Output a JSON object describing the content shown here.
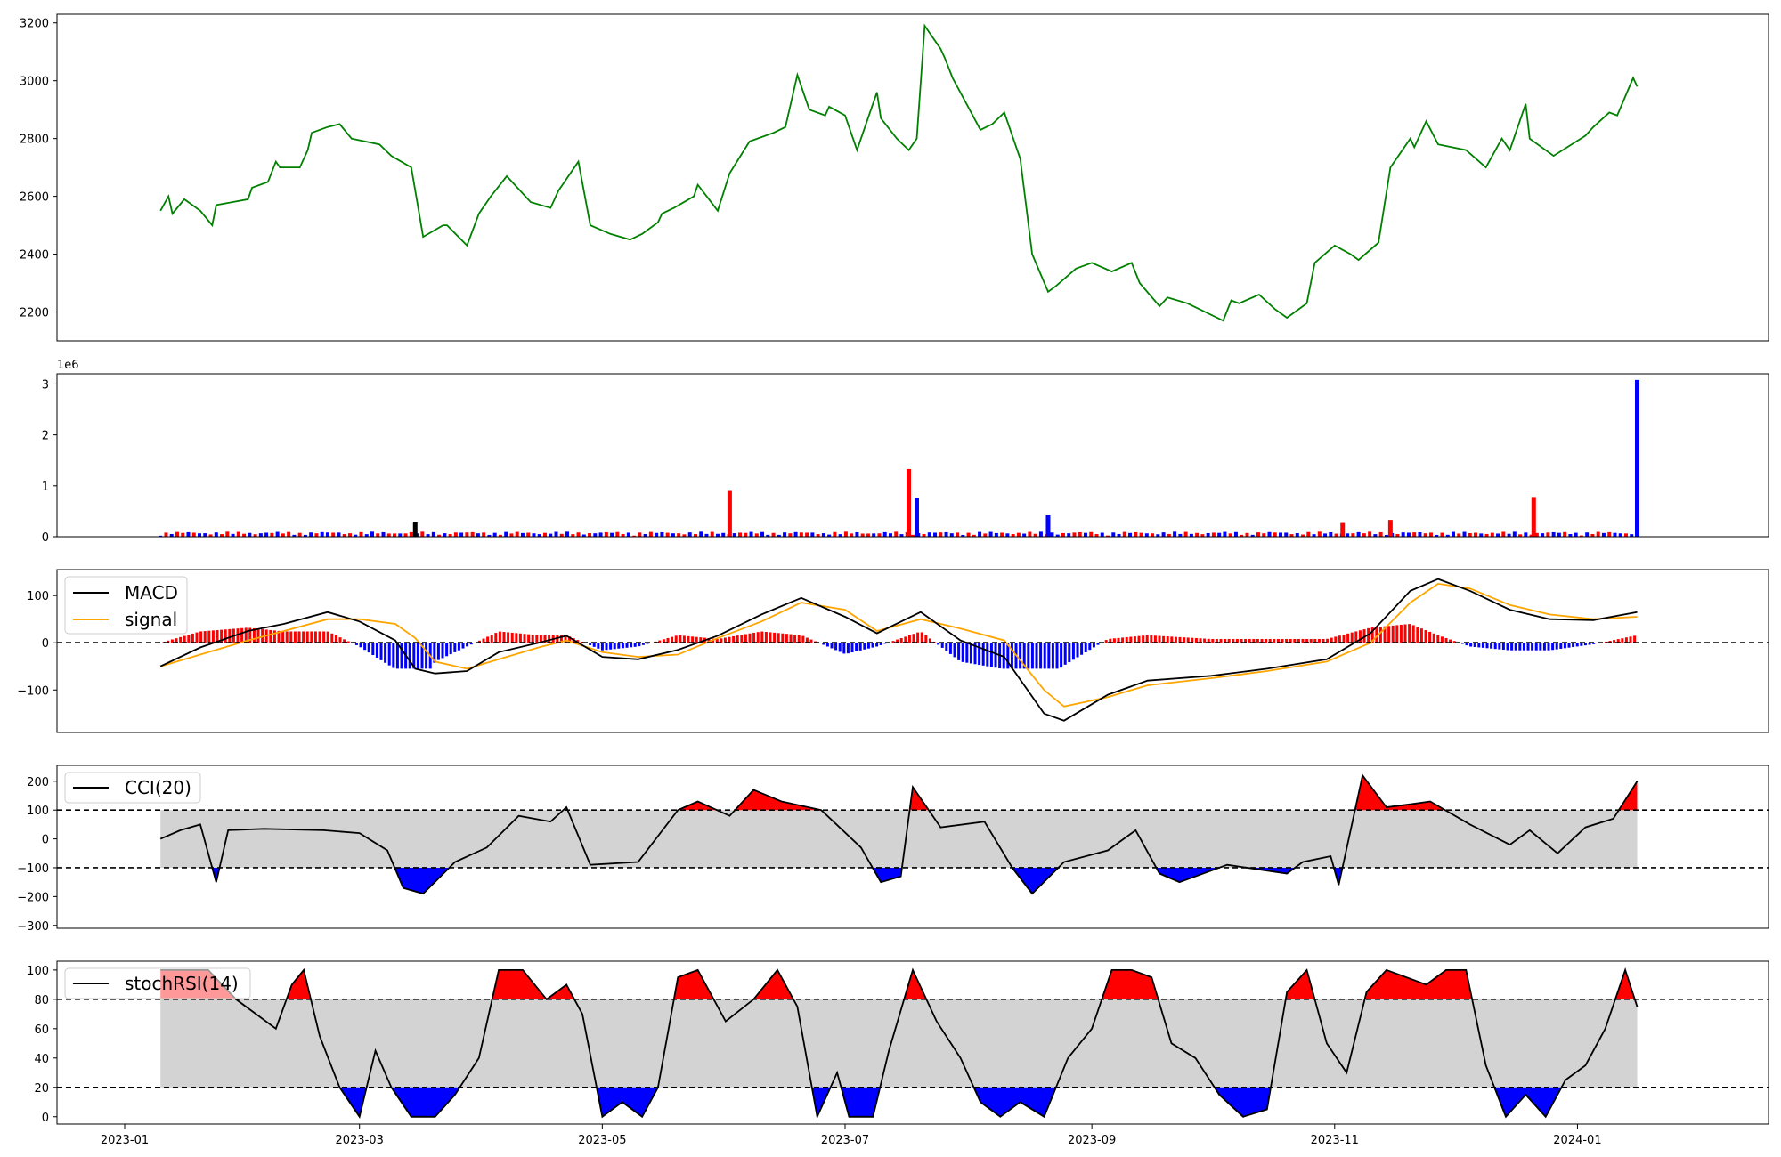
{
  "chart_data": [
    {
      "type": "line",
      "panel": "price",
      "ylim": [
        2100,
        3230
      ],
      "yticks": [
        "2200",
        "2400",
        "2600",
        "2800",
        "3000",
        "3200"
      ],
      "color": "#008000",
      "x": [
        "2023-01-10",
        "2023-01-12",
        "2023-01-13",
        "2023-01-16",
        "2023-01-20",
        "2023-01-23",
        "2023-01-24",
        "2023-02-01",
        "2023-02-02",
        "2023-02-06",
        "2023-02-08",
        "2023-02-09",
        "2023-02-14",
        "2023-02-16",
        "2023-02-17",
        "2023-02-21",
        "2023-02-24",
        "2023-02-27",
        "2023-03-06",
        "2023-03-09",
        "2023-03-14",
        "2023-03-15",
        "2023-03-17",
        "2023-03-22",
        "2023-03-23",
        "2023-03-28",
        "2023-03-31",
        "2023-04-03",
        "2023-04-07",
        "2023-04-13",
        "2023-04-18",
        "2023-04-20",
        "2023-04-21",
        "2023-04-25",
        "2023-04-28",
        "2023-05-03",
        "2023-05-08",
        "2023-05-11",
        "2023-05-15",
        "2023-05-16",
        "2023-05-19",
        "2023-05-24",
        "2023-05-25",
        "2023-05-30",
        "2023-06-02",
        "2023-06-07",
        "2023-06-13",
        "2023-06-16",
        "2023-06-19",
        "2023-06-22",
        "2023-06-26",
        "2023-06-27",
        "2023-07-01",
        "2023-07-04",
        "2023-07-07",
        "2023-07-09",
        "2023-07-10",
        "2023-07-14",
        "2023-07-17",
        "2023-07-19",
        "2023-07-21",
        "2023-07-25",
        "2023-07-26",
        "2023-07-28",
        "2023-08-04",
        "2023-08-07",
        "2023-08-10",
        "2023-08-14",
        "2023-08-17",
        "2023-08-21",
        "2023-08-23",
        "2023-08-28",
        "2023-09-01",
        "2023-09-06",
        "2023-09-11",
        "2023-09-13",
        "2023-09-18",
        "2023-09-20",
        "2023-09-25",
        "2023-10-04",
        "2023-10-06",
        "2023-10-08",
        "2023-10-13",
        "2023-10-17",
        "2023-10-20",
        "2023-10-25",
        "2023-10-27",
        "2023-11-01",
        "2023-11-05",
        "2023-11-07",
        "2023-11-12",
        "2023-11-15",
        "2023-11-20",
        "2023-11-21",
        "2023-11-24",
        "2023-11-27",
        "2023-12-04",
        "2023-12-09",
        "2023-12-13",
        "2023-12-15",
        "2023-12-19",
        "2023-12-20",
        "2023-12-26",
        "2024-01-03",
        "2024-01-05",
        "2024-01-09",
        "2024-01-11",
        "2024-01-15",
        "2024-01-16"
      ],
      "y": [
        2550,
        2600,
        2540,
        2590,
        2550,
        2500,
        2570,
        2590,
        2630,
        2650,
        2720,
        2700,
        2700,
        2760,
        2820,
        2840,
        2850,
        2800,
        2780,
        2740,
        2700,
        2620,
        2460,
        2500,
        2500,
        2430,
        2540,
        2600,
        2670,
        2580,
        2560,
        2620,
        2640,
        2720,
        2500,
        2470,
        2450,
        2470,
        2510,
        2540,
        2560,
        2600,
        2640,
        2550,
        2680,
        2790,
        2820,
        2840,
        3020,
        2900,
        2880,
        2910,
        2880,
        2760,
        2880,
        2960,
        2870,
        2800,
        2760,
        2800,
        3190,
        3110,
        3080,
        3010,
        2830,
        2850,
        2890,
        2730,
        2400,
        2270,
        2290,
        2350,
        2370,
        2340,
        2370,
        2300,
        2220,
        2250,
        2230,
        2170,
        2240,
        2230,
        2260,
        2210,
        2180,
        2230,
        2370,
        2430,
        2400,
        2380,
        2440,
        2700,
        2800,
        2770,
        2860,
        2780,
        2760,
        2700,
        2800,
        2760,
        2920,
        2800,
        2740,
        2810,
        2840,
        2890,
        2880,
        3010,
        2980
      ]
    },
    {
      "type": "bar",
      "panel": "volume",
      "offset_label": "1e6",
      "ylim": [
        0,
        3.2
      ],
      "yticks": [
        "0",
        "1",
        "2",
        "3"
      ],
      "spikes": [
        {
          "x": "2023-03-15",
          "value": 0.28,
          "color": "#000000"
        },
        {
          "x": "2023-06-02",
          "value": 0.9,
          "color": "#ff0000"
        },
        {
          "x": "2023-07-17",
          "value": 1.33,
          "color": "#ff0000"
        },
        {
          "x": "2023-07-19",
          "value": 0.76,
          "color": "#0000ff"
        },
        {
          "x": "2023-08-21",
          "value": 0.42,
          "color": "#0000ff"
        },
        {
          "x": "2023-11-03",
          "value": 0.27,
          "color": "#ff0000"
        },
        {
          "x": "2023-11-15",
          "value": 0.33,
          "color": "#ff0000"
        },
        {
          "x": "2023-12-21",
          "value": 0.78,
          "color": "#ff0000"
        },
        {
          "x": "2024-01-16",
          "value": 3.08,
          "color": "#0000ff"
        }
      ]
    },
    {
      "type": "line",
      "panel": "macd",
      "ylim": [
        -190,
        155
      ],
      "yticks": [
        "100",
        "0",
        "−100"
      ],
      "legend": [
        "MACD",
        "signal"
      ],
      "colors": {
        "macd": "#000000",
        "signal": "#ffa500",
        "pos": "#ff0000",
        "neg": "#0000ff"
      },
      "x": [
        "2023-01-10",
        "2023-01-20",
        "2023-02-01",
        "2023-02-10",
        "2023-02-21",
        "2023-03-01",
        "2023-03-10",
        "2023-03-15",
        "2023-03-20",
        "2023-03-28",
        "2023-04-05",
        "2023-04-15",
        "2023-04-22",
        "2023-05-01",
        "2023-05-10",
        "2023-05-20",
        "2023-05-30",
        "2023-06-10",
        "2023-06-20",
        "2023-07-01",
        "2023-07-09",
        "2023-07-20",
        "2023-07-30",
        "2023-08-10",
        "2023-08-20",
        "2023-08-25",
        "2023-09-05",
        "2023-09-15",
        "2023-10-01",
        "2023-10-15",
        "2023-10-30",
        "2023-11-10",
        "2023-11-20",
        "2023-11-27",
        "2023-12-05",
        "2023-12-15",
        "2023-12-25",
        "2024-01-05",
        "2024-01-16"
      ],
      "macd": [
        -50,
        -10,
        25,
        40,
        65,
        45,
        5,
        -55,
        -65,
        -60,
        -20,
        0,
        15,
        -30,
        -35,
        -15,
        15,
        60,
        95,
        55,
        20,
        65,
        5,
        -30,
        -150,
        -165,
        -110,
        -80,
        -70,
        -55,
        -35,
        20,
        110,
        135,
        110,
        70,
        50,
        48,
        65
      ],
      "signal": [
        -50,
        -25,
        5,
        25,
        50,
        50,
        40,
        10,
        -40,
        -55,
        -35,
        -10,
        5,
        -20,
        -30,
        -25,
        10,
        45,
        85,
        70,
        25,
        50,
        30,
        5,
        -100,
        -135,
        -115,
        -90,
        -75,
        -60,
        -40,
        0,
        85,
        125,
        115,
        80,
        60,
        50,
        55
      ]
    },
    {
      "type": "line",
      "panel": "cci",
      "legend": [
        "CCI(20)"
      ],
      "ylim": [
        -310,
        255
      ],
      "yticks": [
        "200",
        "100",
        "0",
        "−100",
        "−200",
        "−300"
      ],
      "thresholds": [
        100,
        -100
      ],
      "x": [
        "2023-01-10",
        "2023-01-15",
        "2023-01-20",
        "2023-01-24",
        "2023-01-27",
        "2023-02-05",
        "2023-02-20",
        "2023-03-01",
        "2023-03-08",
        "2023-03-12",
        "2023-03-17",
        "2023-03-25",
        "2023-04-02",
        "2023-04-10",
        "2023-04-18",
        "2023-04-22",
        "2023-04-28",
        "2023-05-10",
        "2023-05-20",
        "2023-05-25",
        "2023-06-02",
        "2023-06-08",
        "2023-06-15",
        "2023-06-25",
        "2023-07-05",
        "2023-07-10",
        "2023-07-15",
        "2023-07-18",
        "2023-07-25",
        "2023-08-05",
        "2023-08-12",
        "2023-08-17",
        "2023-08-25",
        "2023-09-05",
        "2023-09-12",
        "2023-09-18",
        "2023-09-23",
        "2023-10-05",
        "2023-10-20",
        "2023-10-24",
        "2023-10-31",
        "2023-11-02",
        "2023-11-08",
        "2023-11-14",
        "2023-11-20",
        "2023-11-25",
        "2023-12-05",
        "2023-12-15",
        "2023-12-20",
        "2023-12-27",
        "2024-01-03",
        "2024-01-10",
        "2024-01-16"
      ],
      "y": [
        0,
        30,
        50,
        -150,
        30,
        35,
        30,
        20,
        -40,
        -170,
        -190,
        -80,
        -30,
        80,
        60,
        110,
        -90,
        -80,
        100,
        130,
        80,
        170,
        130,
        100,
        -30,
        -150,
        -130,
        180,
        40,
        60,
        -100,
        -190,
        -80,
        -40,
        30,
        -120,
        -150,
        -90,
        -120,
        -80,
        -60,
        -160,
        220,
        110,
        120,
        130,
        50,
        -20,
        30,
        -50,
        40,
        70,
        200
      ]
    },
    {
      "type": "line",
      "panel": "stochrsi",
      "legend": [
        "stochRSI(14)"
      ],
      "ylim": [
        -5,
        106
      ],
      "yticks": [
        "100",
        "80",
        "60",
        "40",
        "20",
        "0"
      ],
      "thresholds": [
        80,
        20
      ],
      "x": [
        "2023-01-10",
        "2023-01-16",
        "2023-01-22",
        "2023-01-29",
        "2023-02-03",
        "2023-02-08",
        "2023-02-12",
        "2023-02-15",
        "2023-02-19",
        "2023-02-24",
        "2023-03-01",
        "2023-03-05",
        "2023-03-09",
        "2023-03-14",
        "2023-03-20",
        "2023-03-25",
        "2023-03-31",
        "2023-04-05",
        "2023-04-11",
        "2023-04-17",
        "2023-04-22",
        "2023-04-26",
        "2023-05-01",
        "2023-05-06",
        "2023-05-11",
        "2023-05-15",
        "2023-05-20",
        "2023-05-25",
        "2023-06-01",
        "2023-06-08",
        "2023-06-14",
        "2023-06-19",
        "2023-06-24",
        "2023-06-29",
        "2023-07-02",
        "2023-07-08",
        "2023-07-12",
        "2023-07-18",
        "2023-07-24",
        "2023-07-30",
        "2023-08-04",
        "2023-08-09",
        "2023-08-14",
        "2023-08-20",
        "2023-08-26",
        "2023-09-01",
        "2023-09-06",
        "2023-09-11",
        "2023-09-16",
        "2023-09-21",
        "2023-09-27",
        "2023-10-03",
        "2023-10-09",
        "2023-10-15",
        "2023-10-20",
        "2023-10-25",
        "2023-10-30",
        "2023-11-04",
        "2023-11-09",
        "2023-11-14",
        "2023-11-19",
        "2023-11-24",
        "2023-11-29",
        "2023-12-04",
        "2023-12-09",
        "2023-12-14",
        "2023-12-19",
        "2023-12-24",
        "2023-12-29",
        "2024-01-03",
        "2024-01-08",
        "2024-01-13",
        "2024-01-16"
      ],
      "y": [
        100,
        100,
        100,
        80,
        70,
        60,
        90,
        100,
        55,
        20,
        0,
        45,
        20,
        0,
        0,
        15,
        40,
        100,
        100,
        80,
        90,
        70,
        0,
        10,
        0,
        20,
        95,
        100,
        65,
        80,
        100,
        75,
        0,
        30,
        0,
        0,
        45,
        100,
        65,
        40,
        10,
        0,
        10,
        0,
        40,
        60,
        100,
        100,
        95,
        50,
        40,
        15,
        0,
        5,
        85,
        100,
        50,
        30,
        85,
        100,
        95,
        90,
        100,
        100,
        35,
        0,
        15,
        0,
        25,
        35,
        60,
        100,
        75
      ]
    }
  ],
  "x_axis": {
    "ticks": [
      "2023-01",
      "2023-03",
      "2023-05",
      "2023-07",
      "2023-09",
      "2023-11",
      "2024-01"
    ],
    "range": [
      "2022-12-15",
      "2024-02-18"
    ]
  }
}
